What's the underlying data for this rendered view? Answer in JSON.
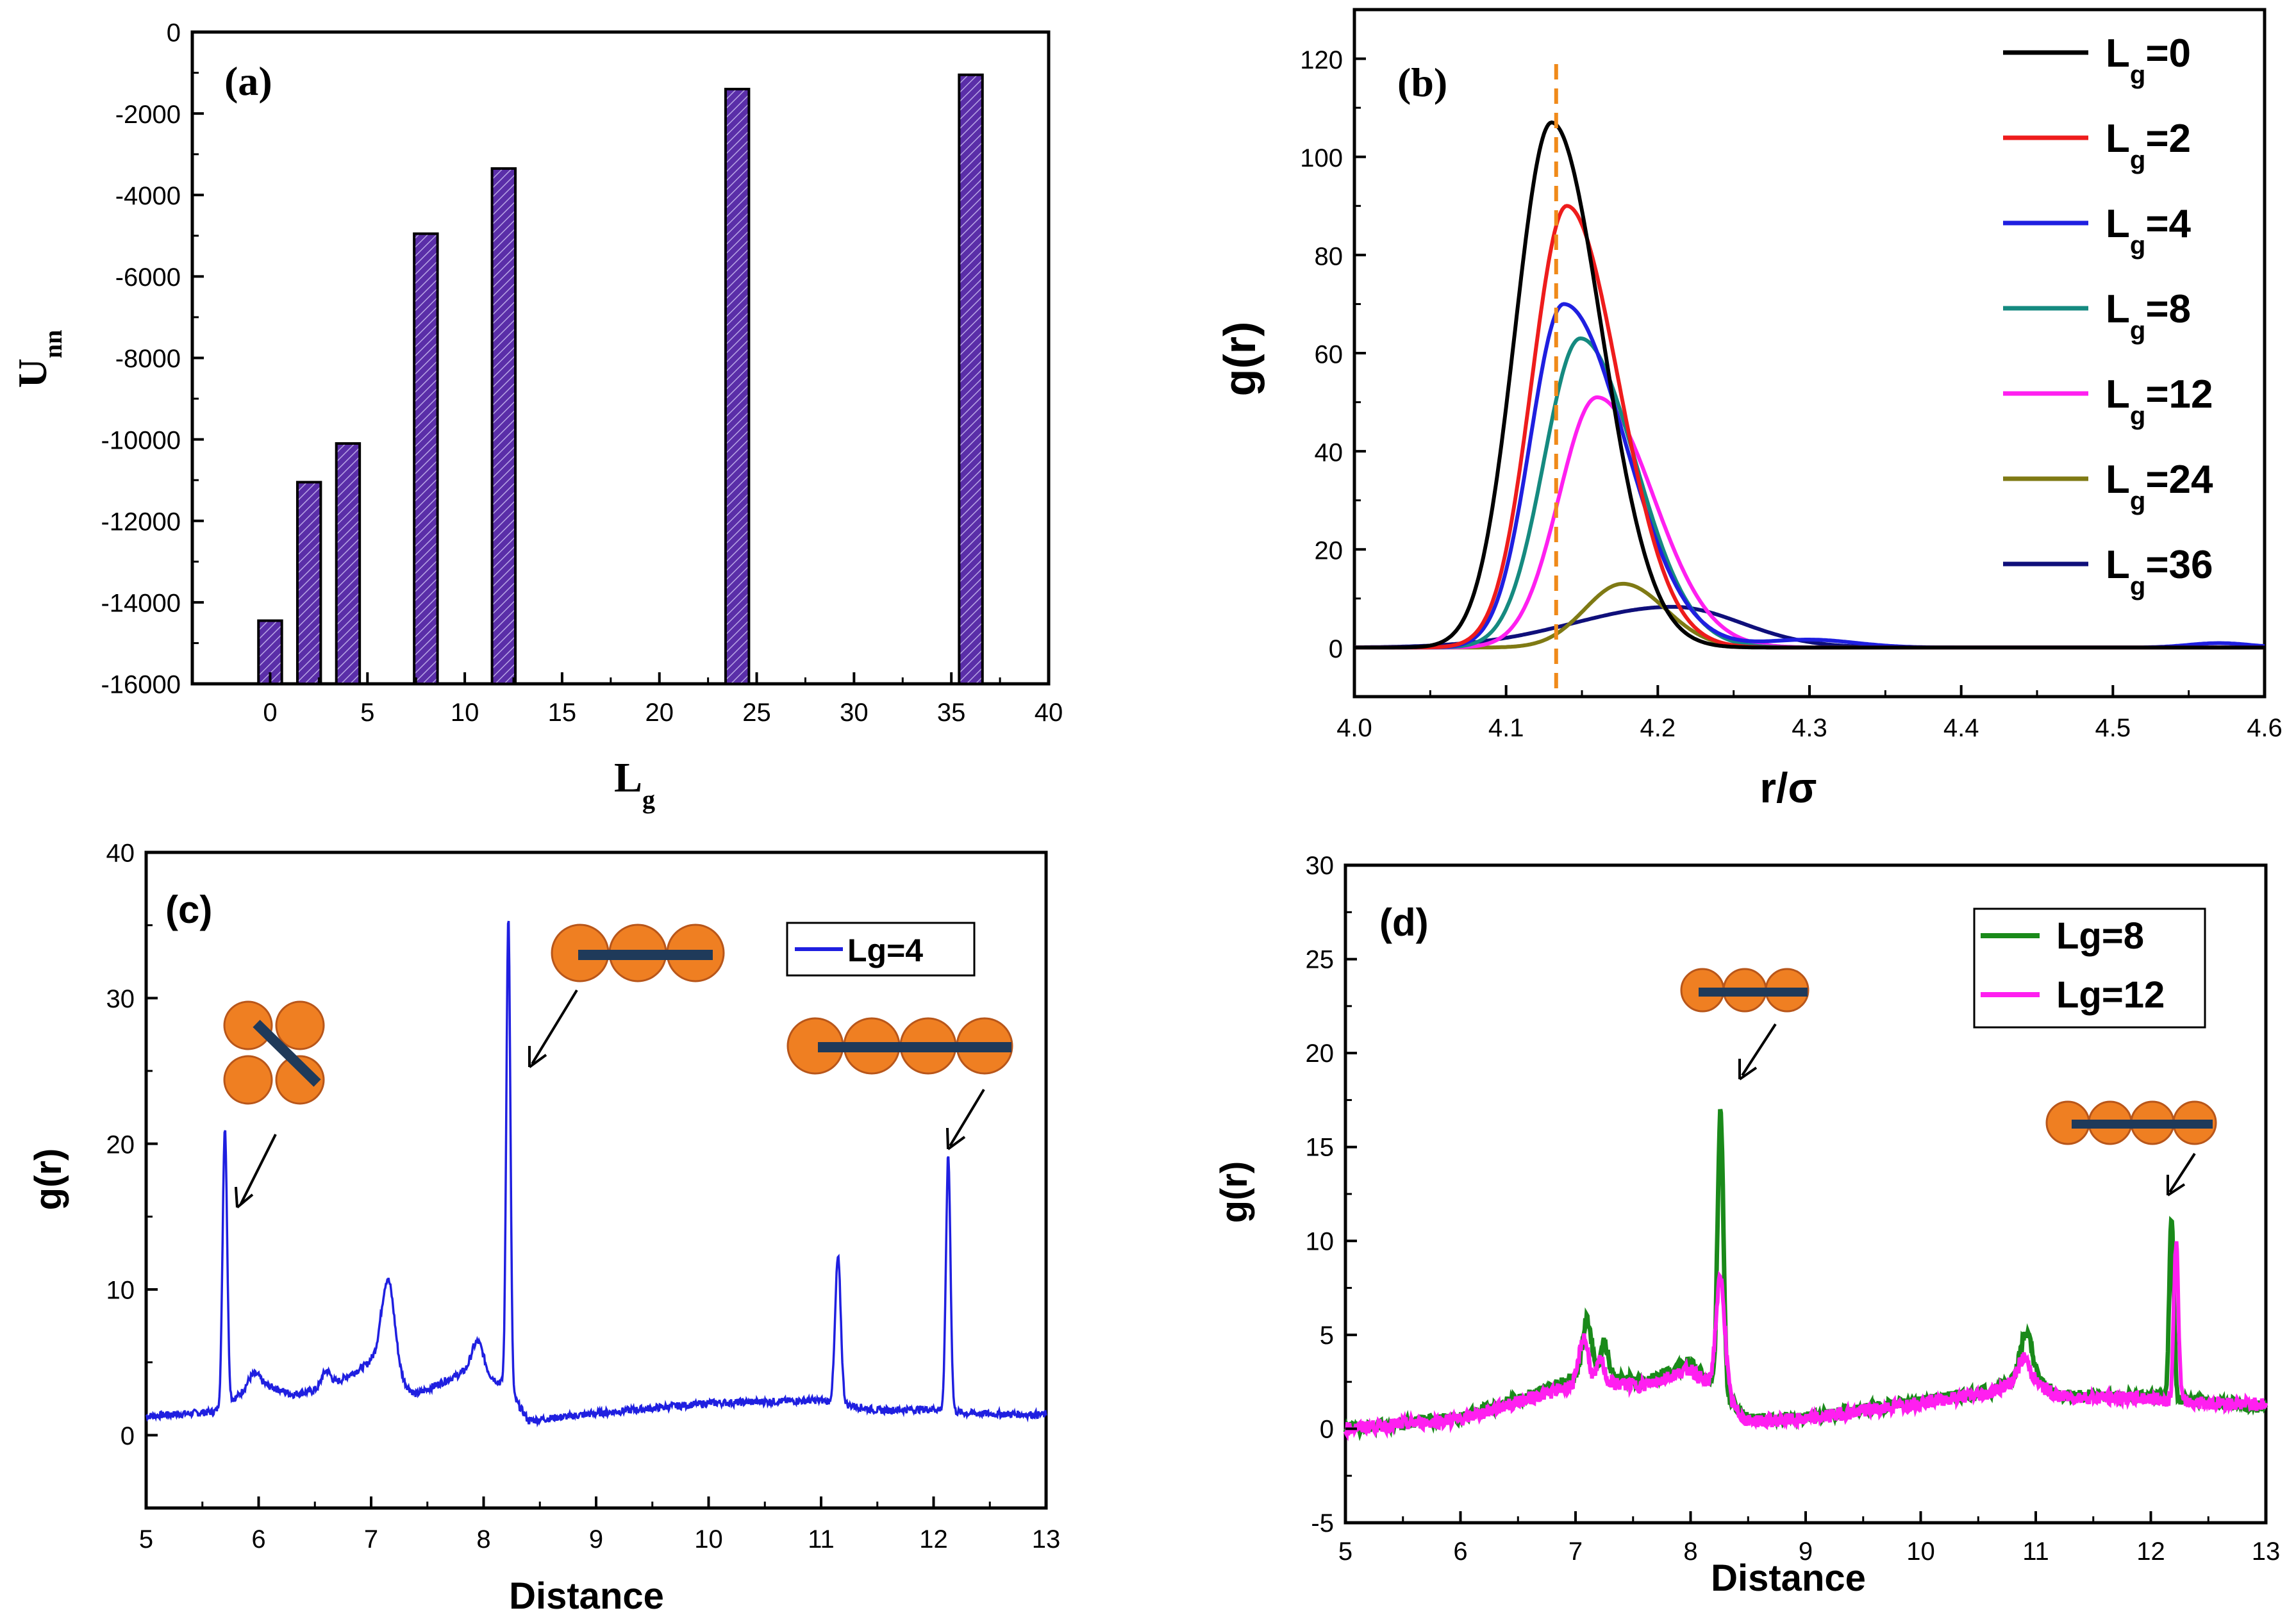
{
  "colors": {
    "bar_fill": "#5a2ea8",
    "orange_dashed": "#f08a1a",
    "bead_fill": "#ef7f22",
    "bead_stroke": "#b8561a",
    "rod": "#1f3a5a"
  },
  "chart_data": [
    {
      "id": "a",
      "type": "bar",
      "panel_label": "(a)",
      "xlabel_main": "L",
      "xlabel_sub": "g",
      "ylabel_main": "U",
      "ylabel_sub": "nn",
      "xlim": [
        -4,
        40
      ],
      "ylim": [
        -16000,
        0
      ],
      "xticks": [
        0,
        5,
        10,
        15,
        20,
        25,
        30,
        35,
        40
      ],
      "yticks": [
        0,
        -2000,
        -4000,
        -6000,
        -8000,
        -10000,
        -12000,
        -14000,
        -16000
      ],
      "ytick_labels": [
        "0",
        "-2000",
        "-4000",
        "-6000",
        "-8000",
        "-10000",
        "-12000",
        "-14000",
        "-16000"
      ],
      "bar_width": 1.2,
      "x": [
        0,
        2,
        4,
        8,
        12,
        24,
        36
      ],
      "values": [
        -14450,
        -11050,
        -10100,
        -4950,
        -3350,
        -1400,
        -1050
      ]
    },
    {
      "id": "b",
      "type": "line",
      "panel_label": "(b)",
      "xlabel": "r/σ",
      "ylabel": "g(r)",
      "xlim": [
        4.0,
        4.6
      ],
      "ylim": [
        -10,
        130
      ],
      "xticks": [
        4.0,
        4.1,
        4.2,
        4.3,
        4.4,
        4.5,
        4.6
      ],
      "xtick_labels": [
        "4.0",
        "4.1",
        "4.2",
        "4.3",
        "4.4",
        "4.5",
        "4.6"
      ],
      "yticks": [
        0,
        20,
        40,
        60,
        80,
        100,
        120
      ],
      "vline_x": 4.133,
      "legend": [
        {
          "main": "L",
          "sub": "g",
          "rest": "=0"
        },
        {
          "main": "L",
          "sub": "g",
          "rest": "=2"
        },
        {
          "main": "L",
          "sub": "g",
          "rest": "=4"
        },
        {
          "main": "L",
          "sub": "g",
          "rest": "=8"
        },
        {
          "main": "L",
          "sub": "g",
          "rest": "=12"
        },
        {
          "main": "L",
          "sub": "g",
          "rest": "=24"
        },
        {
          "main": "L",
          "sub": "g",
          "rest": "=36"
        }
      ],
      "series": [
        {
          "name": "Lg=0",
          "color": "#000000",
          "peak": 4.13,
          "height": 107,
          "sigma_left": 0.024,
          "sigma_right": 0.033,
          "tail_height": 0,
          "tail_center": 4.3,
          "tail_width": 0.03
        },
        {
          "name": "Lg=2",
          "color": "#ee1c1c",
          "peak": 4.14,
          "height": 90,
          "sigma_left": 0.023,
          "sigma_right": 0.034,
          "tail_height": 0,
          "tail_center": 4.3,
          "tail_width": 0.03
        },
        {
          "name": "Lg=4",
          "color": "#1f1fe0",
          "peak": 4.138,
          "height": 70,
          "sigma_left": 0.022,
          "sigma_right": 0.04,
          "tail_height": 1.6,
          "tail_center": 4.3,
          "tail_width": 0.03
        },
        {
          "name": "Lg=8",
          "color": "#158a80",
          "peak": 4.149,
          "height": 63,
          "sigma_left": 0.024,
          "sigma_right": 0.036,
          "tail_height": 0,
          "tail_center": 4.3,
          "tail_width": 0.03
        },
        {
          "name": "Lg=12",
          "color": "#ff1ff0",
          "peak": 4.16,
          "height": 51,
          "sigma_left": 0.025,
          "sigma_right": 0.037,
          "tail_height": 0,
          "tail_center": 4.3,
          "tail_width": 0.03
        },
        {
          "name": "Lg=24",
          "color": "#7f7a14",
          "peak": 4.177,
          "height": 13,
          "sigma_left": 0.025,
          "sigma_right": 0.028,
          "tail_height": 0,
          "tail_center": 4.3,
          "tail_width": 0.03
        },
        {
          "name": "Lg=36",
          "color": "#0f0f7a",
          "peak": 4.21,
          "height": 8.3,
          "sigma_left": 0.065,
          "sigma_right": 0.045,
          "tail_height": 0,
          "tail_center": 4.3,
          "tail_width": 0.03
        }
      ]
    },
    {
      "id": "c",
      "type": "line",
      "panel_label": "(c)",
      "xlabel": "Distance",
      "ylabel": "g(r)",
      "xlim": [
        5,
        13
      ],
      "ylim": [
        -5,
        40
      ],
      "xticks": [
        5,
        6,
        7,
        8,
        9,
        10,
        11,
        12,
        13
      ],
      "yticks": [
        0,
        10,
        20,
        30,
        40
      ],
      "legend": [
        "Lg=4"
      ],
      "series": [
        {
          "name": "Lg=4",
          "color": "#1f1fe0",
          "baseline": [
            [
              5.0,
              1.3
            ],
            [
              5.6,
              1.6
            ],
            [
              6.0,
              3.6
            ],
            [
              6.3,
              2.8
            ],
            [
              6.6,
              3.2
            ],
            [
              7.0,
              5.0
            ],
            [
              7.4,
              2.8
            ],
            [
              7.9,
              4.6
            ],
            [
              8.2,
              3.4
            ],
            [
              8.4,
              1.0
            ],
            [
              9.0,
              1.5
            ],
            [
              10.0,
              2.2
            ],
            [
              11.0,
              2.4
            ],
            [
              11.5,
              1.7
            ],
            [
              12.0,
              1.8
            ],
            [
              12.3,
              1.5
            ],
            [
              13.0,
              1.4
            ]
          ],
          "peaks": [
            [
              5.7,
              19.0,
              0.02
            ],
            [
              5.95,
              0.8,
              0.05
            ],
            [
              6.6,
              1.2,
              0.04
            ],
            [
              7.15,
              6.5,
              0.06
            ],
            [
              7.95,
              2.0,
              0.05
            ],
            [
              8.22,
              32.5,
              0.018
            ],
            [
              11.15,
              10.0,
              0.025
            ],
            [
              12.13,
              17.5,
              0.02
            ]
          ],
          "noise": 0.25
        }
      ]
    },
    {
      "id": "d",
      "type": "line",
      "panel_label": "(d)",
      "xlabel": "Distance",
      "ylabel": "g(r)",
      "xlim": [
        5,
        13
      ],
      "ylim": [
        -5,
        30
      ],
      "xticks": [
        5,
        6,
        7,
        8,
        9,
        10,
        11,
        12,
        13
      ],
      "yticks": [
        -5,
        0,
        5,
        10,
        15,
        20,
        25,
        30
      ],
      "legend": [
        "Lg=8",
        "Lg=12"
      ],
      "series": [
        {
          "name": "Lg=8",
          "color": "#1a8a1a",
          "baseline": [
            [
              5.0,
              0.0
            ],
            [
              6.0,
              0.6
            ],
            [
              6.7,
              2.0
            ],
            [
              7.1,
              3.0
            ],
            [
              7.6,
              2.5
            ],
            [
              8.0,
              3.5
            ],
            [
              8.5,
              0.5
            ],
            [
              9.0,
              0.6
            ],
            [
              10.0,
              1.5
            ],
            [
              10.6,
              2.0
            ],
            [
              10.9,
              3.0
            ],
            [
              11.2,
              1.8
            ],
            [
              12.0,
              1.7
            ],
            [
              12.4,
              1.5
            ],
            [
              13.0,
              1.2
            ]
          ],
          "peaks": [
            [
              7.1,
              2.8,
              0.04
            ],
            [
              7.25,
              1.8,
              0.03
            ],
            [
              8.26,
              15.0,
              0.025
            ],
            [
              10.92,
              2.2,
              0.05
            ],
            [
              12.18,
              9.5,
              0.02
            ]
          ],
          "noise": 0.3
        },
        {
          "name": "Lg=12",
          "color": "#ff1ff0",
          "baseline": [
            [
              5.0,
              0.0
            ],
            [
              6.0,
              0.5
            ],
            [
              6.7,
              1.8
            ],
            [
              7.1,
              2.5
            ],
            [
              7.6,
              2.3
            ],
            [
              8.0,
              3.2
            ],
            [
              8.5,
              0.4
            ],
            [
              9.0,
              0.5
            ],
            [
              10.0,
              1.4
            ],
            [
              10.6,
              1.9
            ],
            [
              10.9,
              2.8
            ],
            [
              11.2,
              1.7
            ],
            [
              12.0,
              1.6
            ],
            [
              12.4,
              1.4
            ],
            [
              13.0,
              1.3
            ]
          ],
          "peaks": [
            [
              7.07,
              2.4,
              0.04
            ],
            [
              7.22,
              1.2,
              0.03
            ],
            [
              8.26,
              6.2,
              0.04
            ],
            [
              10.9,
              1.0,
              0.05
            ],
            [
              12.22,
              8.4,
              0.02
            ]
          ],
          "noise": 0.35
        }
      ]
    }
  ]
}
